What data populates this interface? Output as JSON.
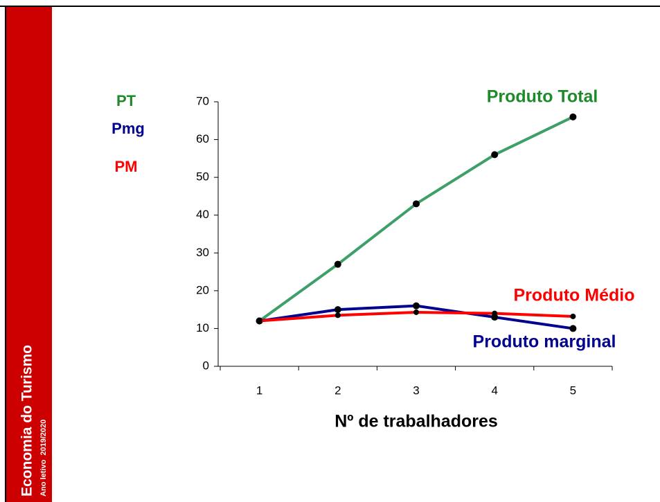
{
  "sidebar": {
    "title": "Economia do Turismo",
    "subtitle": "Ano letivo  2019/2020"
  },
  "chart_data": {
    "type": "line",
    "x": [
      1,
      2,
      3,
      4,
      5
    ],
    "xlim": [
      0.5,
      5.5
    ],
    "xticks": [
      1,
      2,
      3,
      4,
      5
    ],
    "xlabel": "Nº de trabalhadores",
    "ylim": [
      0,
      70
    ],
    "yticks": [
      0,
      10,
      20,
      30,
      40,
      50,
      60,
      70
    ],
    "series": [
      {
        "name": "Produto Total",
        "short_name": "PT",
        "color": "#3f9f68",
        "label_color": "#1f8a2a",
        "values": [
          12,
          27,
          43,
          56,
          66
        ]
      },
      {
        "name": "Produto marginal",
        "short_name": "Pmg",
        "color": "#000090",
        "label_color": "#000090",
        "values": [
          12,
          15,
          16,
          13,
          10
        ]
      },
      {
        "name": "Produto Médio",
        "short_name": "PM",
        "color": "#ff0000",
        "label_color": "#ff0000",
        "values": [
          12,
          13.5,
          14.3,
          14,
          13.2
        ]
      }
    ]
  }
}
